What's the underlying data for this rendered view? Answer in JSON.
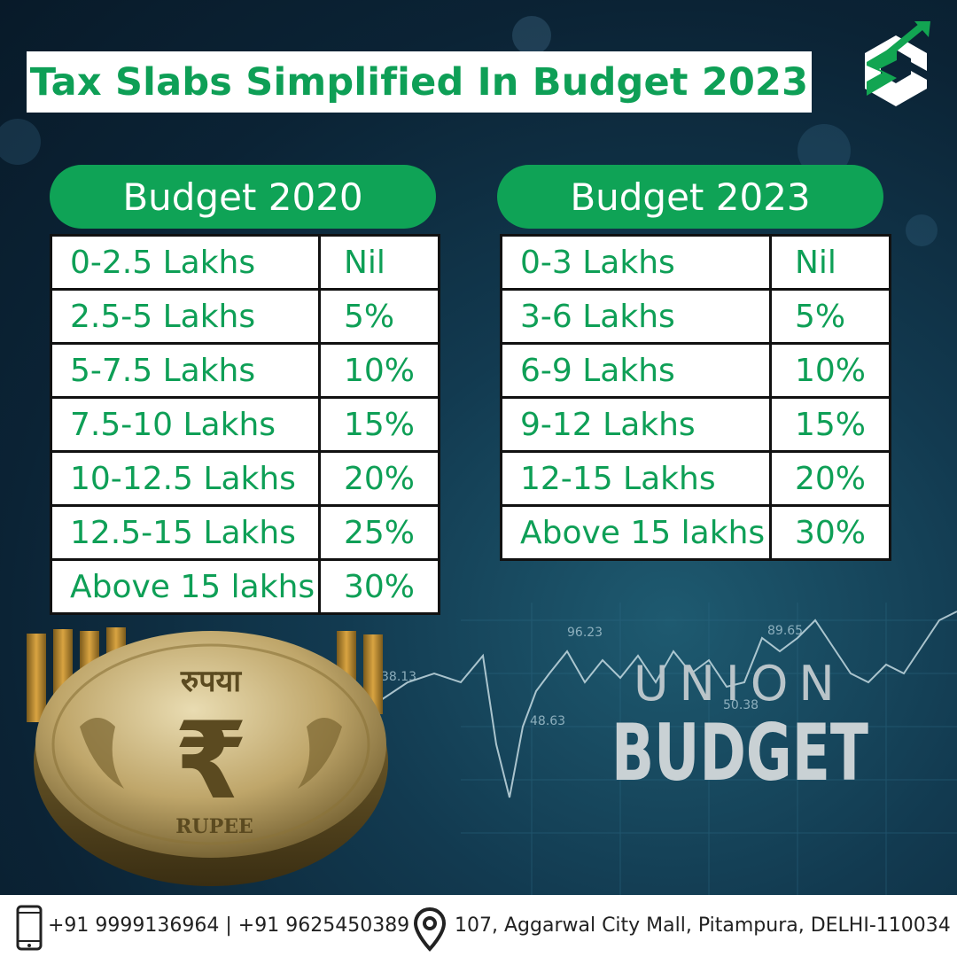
{
  "title": "Tax Slabs Simplified In Budget 2023",
  "brand": {
    "logo_icon": "sc-growth-arrow-logo",
    "green": "#0fa356",
    "text_green": "#0e9f56"
  },
  "budget_2020": {
    "heading": "Budget 2020",
    "rows": [
      {
        "range": "0-2.5 Lakhs",
        "rate": "Nil"
      },
      {
        "range": "2.5-5 Lakhs",
        "rate": "5%"
      },
      {
        "range": "5-7.5 Lakhs",
        "rate": "10%"
      },
      {
        "range": "7.5-10 Lakhs",
        "rate": "15%"
      },
      {
        "range": "10-12.5 Lakhs",
        "rate": "20%"
      },
      {
        "range": "12.5-15 Lakhs",
        "rate": "25%"
      },
      {
        "range": "Above 15 lakhs",
        "rate": "30%"
      }
    ]
  },
  "budget_2023": {
    "heading": "Budget 2023",
    "rows": [
      {
        "range": "0-3 Lakhs",
        "rate": "Nil"
      },
      {
        "range": "3-6 Lakhs",
        "rate": "5%"
      },
      {
        "range": "6-9 Lakhs",
        "rate": "10%"
      },
      {
        "range": "9-12 Lakhs",
        "rate": "15%"
      },
      {
        "range": "12-15 Lakhs",
        "rate": "20%"
      },
      {
        "range": "Above 15 lakhs",
        "rate": "30%"
      }
    ]
  },
  "background": {
    "coin_top_text": "रुपया",
    "coin_symbol": "₹",
    "coin_bottom_text": "RUPEE",
    "union_text": "UNION",
    "budget_text": "BUDGET",
    "ticker_values": [
      "96.23",
      "89.65",
      "38.13",
      "48.63",
      "50.38"
    ]
  },
  "footer": {
    "phone_icon": "mobile-phone-icon",
    "phones": "+91 9999136964 | +91 9625450389",
    "location_icon": "map-pin-icon",
    "address": "107, Aggarwal City Mall, Pitampura, DELHI-110034"
  }
}
